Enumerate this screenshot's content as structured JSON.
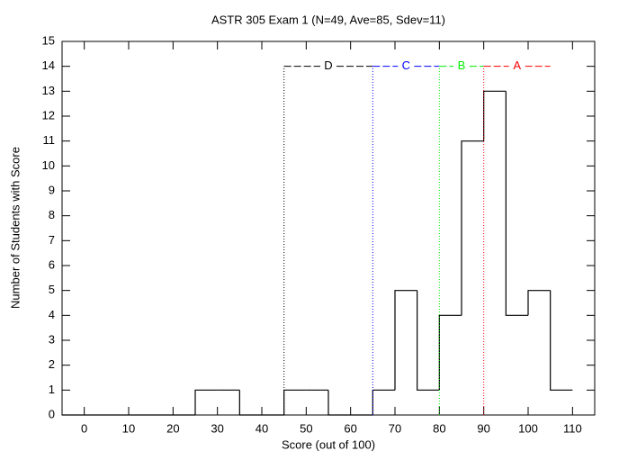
{
  "chart_data": {
    "type": "histogram",
    "title": "ASTR 305 Exam 1 (N=49, Ave=85, Sdev=11)",
    "x_label": "Score (out of 100)",
    "y_label": "Number of Students with Score",
    "bins": [
      -5,
      0,
      5,
      10,
      15,
      20,
      25,
      30,
      35,
      40,
      45,
      50,
      55,
      60,
      65,
      70,
      75,
      80,
      85,
      90,
      95,
      100,
      105,
      110
    ],
    "values": [
      0,
      0,
      0,
      0,
      0,
      0,
      1,
      1,
      0,
      0,
      1,
      1,
      0,
      0,
      1,
      5,
      1,
      4,
      11,
      13,
      4,
      5,
      1
    ],
    "color": "#000000",
    "xlim": [
      -5,
      115
    ],
    "xticks": [
      0,
      10,
      20,
      30,
      40,
      50,
      60,
      70,
      80,
      90,
      100,
      110
    ],
    "ylim": [
      0,
      15
    ],
    "yticks": [
      0,
      1,
      2,
      3,
      4,
      5,
      6,
      7,
      8,
      9,
      10,
      11,
      12,
      13,
      14,
      15
    ],
    "grade_level": 14,
    "grades": [
      {
        "name": "D",
        "color": "#000000",
        "from": 45,
        "to": 65
      },
      {
        "name": "C",
        "color": "#0000ff",
        "from": 65,
        "to": 80
      },
      {
        "name": "B",
        "color": "#00ee00",
        "from": 80,
        "to": 90
      },
      {
        "name": "A",
        "color": "#ff0000",
        "from": 90,
        "to": 105
      }
    ]
  }
}
